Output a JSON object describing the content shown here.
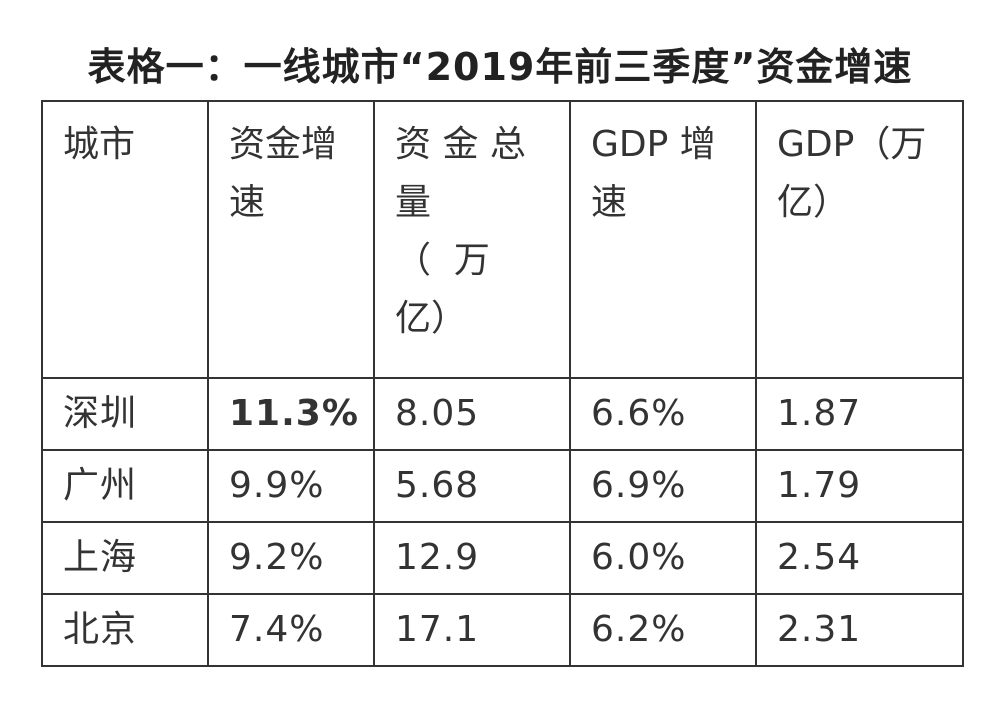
{
  "title": "表格一：一线城市“2019年前三季度”资金增速",
  "table": {
    "headers": [
      {
        "lines": [
          "城市"
        ]
      },
      {
        "lines": [
          "资金增",
          "速"
        ]
      },
      {
        "lines": [
          "资 金 总",
          "量",
          "（  万",
          "亿）"
        ]
      },
      {
        "lines": [
          "GDP 增",
          "速"
        ]
      },
      {
        "lines": [
          "GDP（万",
          "亿）"
        ]
      }
    ],
    "rows": [
      {
        "city": "深圳",
        "fund_growth": "11.3%",
        "fund_total": "8.05",
        "gdp_growth": "6.6%",
        "gdp": "1.87",
        "highlight": true
      },
      {
        "city": "广州",
        "fund_growth": "9.9%",
        "fund_total": "5.68",
        "gdp_growth": "6.9%",
        "gdp": "1.79",
        "highlight": false
      },
      {
        "city": "上海",
        "fund_growth": "9.2%",
        "fund_total": "12.9",
        "gdp_growth": "6.0%",
        "gdp": "2.54",
        "highlight": false
      },
      {
        "city": "北京",
        "fund_growth": "7.4%",
        "fund_total": "17.1",
        "gdp_growth": "6.2%",
        "gdp": "2.31",
        "highlight": false
      }
    ]
  },
  "colors": {
    "text": "#333333",
    "highlight": "#8b1a1a",
    "border": "#333333"
  }
}
